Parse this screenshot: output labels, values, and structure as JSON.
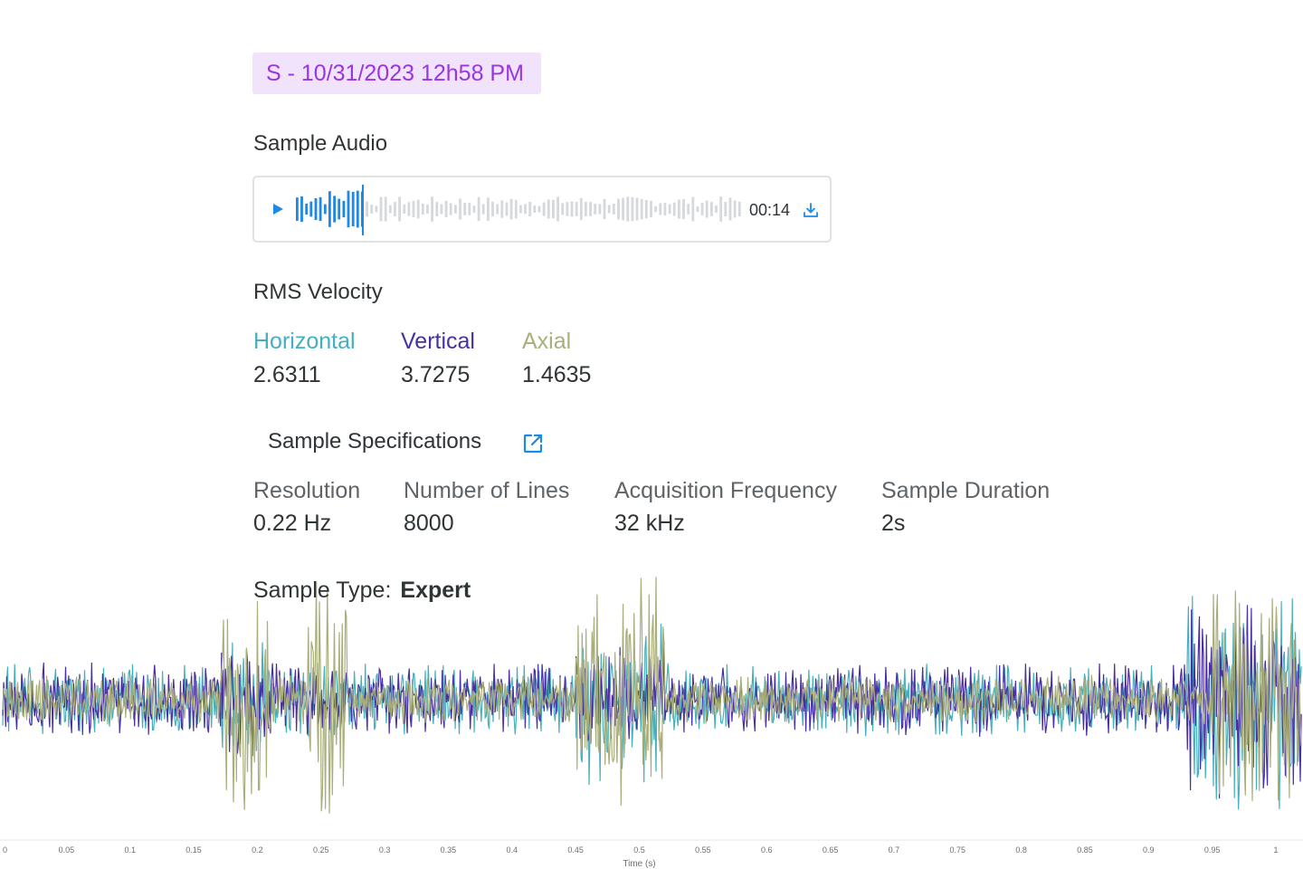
{
  "sample": {
    "tag_label": "S - 10/31/2023 12h58 PM"
  },
  "audio": {
    "section_title": "Sample Audio",
    "time": "00:14",
    "play_icon": "play-icon",
    "download_icon": "download-icon",
    "progress": 0.15
  },
  "rms": {
    "section_title": "RMS Velocity",
    "metrics": [
      {
        "label": "Horizontal",
        "value": "2.6311",
        "color": "#45b0bd"
      },
      {
        "label": "Vertical",
        "value": "3.7275",
        "color": "#4a2fa3"
      },
      {
        "label": "Axial",
        "value": "1.4635",
        "color": "#a9ae7a"
      }
    ]
  },
  "specs": {
    "section_title": "Sample Specifications",
    "link_icon": "external-link-icon",
    "items": [
      {
        "label": "Resolution",
        "value": "0.22 Hz"
      },
      {
        "label": "Number of Lines",
        "value": "8000"
      },
      {
        "label": "Acquisition Frequency",
        "value": "32 kHz"
      },
      {
        "label": "Sample Duration",
        "value": "2s"
      }
    ],
    "sample_type_label": "Sample Type:",
    "sample_type_value": "Expert"
  },
  "colors": {
    "accent": "#1e88e5",
    "tag_bg": "#f1e3fb",
    "tag_text": "#9b35e0",
    "wave_played": "#1e88e5",
    "wave_unplayed": "#d5d8dc"
  },
  "chart_data": {
    "type": "line",
    "xlabel": "Time (s)",
    "ylabel": "",
    "xlim": [
      0,
      1.02
    ],
    "x_ticks": [
      "0",
      "0.05",
      "0.1",
      "0.15",
      "0.2",
      "0.25",
      "0.3",
      "0.35",
      "0.4",
      "0.45",
      "0.5",
      "0.55",
      "0.6",
      "0.65",
      "0.7",
      "0.75",
      "0.8",
      "0.85",
      "0.9",
      "0.95",
      "1"
    ],
    "series": [
      {
        "name": "Horizontal",
        "color": "#45b0bd",
        "bursts": [
          [
            0.17,
            0.21,
            0.55
          ],
          [
            0.45,
            0.52,
            0.75
          ],
          [
            0.93,
            1.02,
            0.9
          ]
        ],
        "base_amplitude": 0.3
      },
      {
        "name": "Vertical",
        "color": "#4a2fa3",
        "bursts": [
          [
            0.17,
            0.21,
            0.5
          ],
          [
            0.45,
            0.52,
            0.5
          ],
          [
            0.93,
            1.02,
            0.8
          ]
        ],
        "base_amplitude": 0.3
      },
      {
        "name": "Axial",
        "color": "#a9ae7a",
        "bursts": [
          [
            0.17,
            0.21,
            1.0
          ],
          [
            0.24,
            0.27,
            1.0
          ],
          [
            0.45,
            0.52,
            1.0
          ],
          [
            0.95,
            1.02,
            0.9
          ]
        ],
        "base_amplitude": 0.2
      }
    ]
  }
}
